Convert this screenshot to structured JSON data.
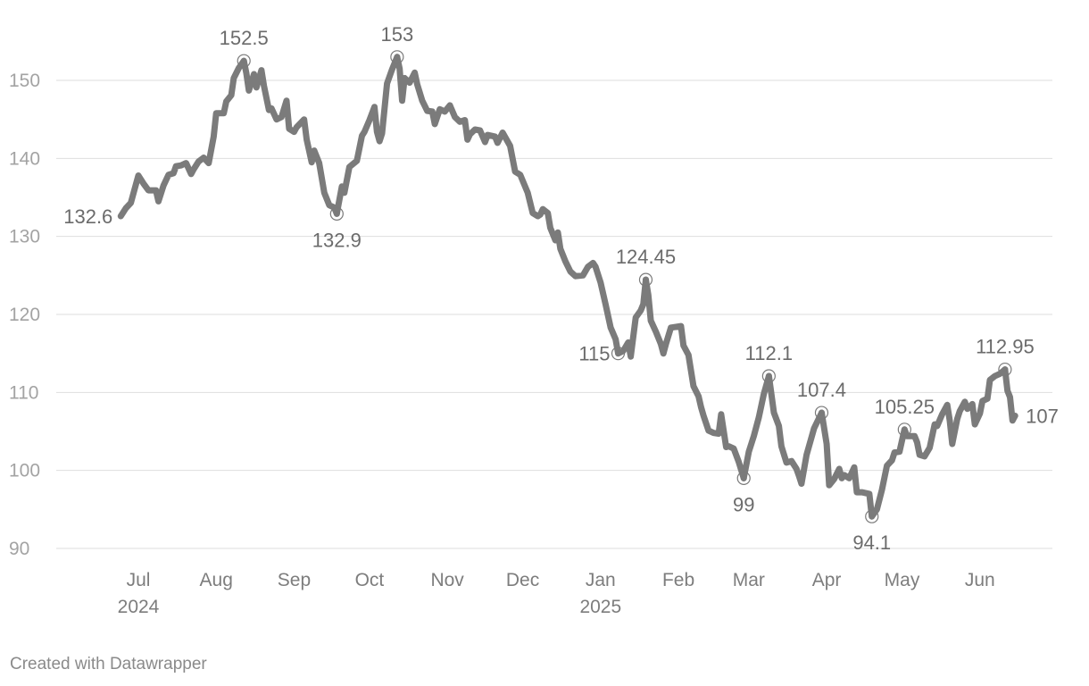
{
  "footer": {
    "credit": "Created with Datawrapper"
  },
  "chart_data": {
    "type": "line",
    "title": "",
    "xlabel": "",
    "ylabel": "",
    "ylim": [
      90,
      153
    ],
    "xlim": [
      "2024-06-23",
      "2025-06-30"
    ],
    "grid": true,
    "yticks": [
      90,
      100,
      110,
      120,
      130,
      140,
      150
    ],
    "xticks": [
      {
        "date": "2024-07-01",
        "label": "Jul",
        "year": "2024"
      },
      {
        "date": "2024-08-01",
        "label": "Aug",
        "year": ""
      },
      {
        "date": "2024-09-01",
        "label": "Sep",
        "year": ""
      },
      {
        "date": "2024-10-01",
        "label": "Oct",
        "year": ""
      },
      {
        "date": "2024-11-01",
        "label": "Nov",
        "year": ""
      },
      {
        "date": "2024-12-01",
        "label": "Dec",
        "year": ""
      },
      {
        "date": "2025-01-01",
        "label": "Jan",
        "year": "2025"
      },
      {
        "date": "2025-02-01",
        "label": "Feb",
        "year": ""
      },
      {
        "date": "2025-03-01",
        "label": "Mar",
        "year": ""
      },
      {
        "date": "2025-04-01",
        "label": "Apr",
        "year": ""
      },
      {
        "date": "2025-05-01",
        "label": "May",
        "year": ""
      },
      {
        "date": "2025-06-01",
        "label": "Jun",
        "year": ""
      }
    ],
    "series": [
      {
        "color": "#7b7b7b",
        "points": [
          [
            "2024-06-24",
            132.6
          ],
          [
            "2024-06-26",
            133.6
          ],
          [
            "2024-06-28",
            134.3
          ],
          [
            "2024-07-01",
            137.8
          ],
          [
            "2024-07-03",
            136.8
          ],
          [
            "2024-07-05",
            135.9
          ],
          [
            "2024-07-08",
            135.9
          ],
          [
            "2024-07-09",
            134.5
          ],
          [
            "2024-07-11",
            136.5
          ],
          [
            "2024-07-13",
            137.9
          ],
          [
            "2024-07-15",
            138.1
          ],
          [
            "2024-07-16",
            139.0
          ],
          [
            "2024-07-18",
            139.1
          ],
          [
            "2024-07-20",
            139.4
          ],
          [
            "2024-07-22",
            138.0
          ],
          [
            "2024-07-23",
            138.6
          ],
          [
            "2024-07-25",
            139.6
          ],
          [
            "2024-07-27",
            140.1
          ],
          [
            "2024-07-29",
            139.4
          ],
          [
            "2024-07-31",
            142.8
          ],
          [
            "2024-08-01",
            145.8
          ],
          [
            "2024-08-04",
            145.8
          ],
          [
            "2024-08-05",
            147.3
          ],
          [
            "2024-08-07",
            148.1
          ],
          [
            "2024-08-08",
            150.3
          ],
          [
            "2024-08-10",
            151.6
          ],
          [
            "2024-08-12",
            152.5
          ],
          [
            "2024-08-13",
            150.9
          ],
          [
            "2024-08-14",
            148.7
          ],
          [
            "2024-08-16",
            150.8
          ],
          [
            "2024-08-17",
            149.1
          ],
          [
            "2024-08-19",
            151.3
          ],
          [
            "2024-08-20",
            149.3
          ],
          [
            "2024-08-22",
            146.2
          ],
          [
            "2024-08-23",
            146.4
          ],
          [
            "2024-08-25",
            145.0
          ],
          [
            "2024-08-27",
            145.3
          ],
          [
            "2024-08-29",
            147.4
          ],
          [
            "2024-08-30",
            143.8
          ],
          [
            "2024-09-01",
            143.4
          ],
          [
            "2024-09-02",
            144.0
          ],
          [
            "2024-09-05",
            145.0
          ],
          [
            "2024-09-06",
            142.4
          ],
          [
            "2024-09-08",
            139.5
          ],
          [
            "2024-09-09",
            141.0
          ],
          [
            "2024-09-11",
            139.4
          ],
          [
            "2024-09-13",
            135.6
          ],
          [
            "2024-09-15",
            134.0
          ],
          [
            "2024-09-17",
            133.7
          ],
          [
            "2024-09-18",
            132.9
          ],
          [
            "2024-09-20",
            136.4
          ],
          [
            "2024-09-21",
            135.6
          ],
          [
            "2024-09-23",
            138.9
          ],
          [
            "2024-09-26",
            139.7
          ],
          [
            "2024-09-28",
            142.9
          ],
          [
            "2024-09-29",
            143.4
          ],
          [
            "2024-10-01",
            144.9
          ],
          [
            "2024-10-03",
            146.6
          ],
          [
            "2024-10-04",
            143.4
          ],
          [
            "2024-10-05",
            142.2
          ],
          [
            "2024-10-06",
            143.2
          ],
          [
            "2024-10-08",
            149.6
          ],
          [
            "2024-10-10",
            151.4
          ],
          [
            "2024-10-12",
            153.0
          ],
          [
            "2024-10-13",
            151.5
          ],
          [
            "2024-10-14",
            147.4
          ],
          [
            "2024-10-15",
            150.3
          ],
          [
            "2024-10-17",
            149.7
          ],
          [
            "2024-10-19",
            151.0
          ],
          [
            "2024-10-20",
            149.5
          ],
          [
            "2024-10-22",
            147.4
          ],
          [
            "2024-10-24",
            146.1
          ],
          [
            "2024-10-26",
            146.0
          ],
          [
            "2024-10-27",
            144.4
          ],
          [
            "2024-10-29",
            146.3
          ],
          [
            "2024-10-31",
            146.0
          ],
          [
            "2024-11-02",
            146.8
          ],
          [
            "2024-11-04",
            145.3
          ],
          [
            "2024-11-06",
            144.7
          ],
          [
            "2024-11-08",
            144.9
          ],
          [
            "2024-11-09",
            142.4
          ],
          [
            "2024-11-10",
            143.1
          ],
          [
            "2024-11-12",
            143.7
          ],
          [
            "2024-11-14",
            143.6
          ],
          [
            "2024-11-16",
            142.1
          ],
          [
            "2024-11-17",
            143.0
          ],
          [
            "2024-11-20",
            142.8
          ],
          [
            "2024-11-21",
            142.0
          ],
          [
            "2024-11-23",
            143.3
          ],
          [
            "2024-11-26",
            141.6
          ],
          [
            "2024-11-28",
            138.3
          ],
          [
            "2024-11-30",
            137.9
          ],
          [
            "2024-12-03",
            135.6
          ],
          [
            "2024-12-05",
            133.0
          ],
          [
            "2024-12-07",
            132.6
          ],
          [
            "2024-12-08",
            132.8
          ],
          [
            "2024-12-09",
            133.5
          ],
          [
            "2024-12-11",
            133.0
          ],
          [
            "2024-12-12",
            131.1
          ],
          [
            "2024-12-14",
            129.5
          ],
          [
            "2024-12-15",
            130.5
          ],
          [
            "2024-12-16",
            128.4
          ],
          [
            "2024-12-18",
            126.8
          ],
          [
            "2024-12-20",
            125.5
          ],
          [
            "2024-12-22",
            124.9
          ],
          [
            "2024-12-25",
            125.0
          ],
          [
            "2024-12-27",
            126.1
          ],
          [
            "2024-12-29",
            126.6
          ],
          [
            "2024-12-30",
            126.1
          ],
          [
            "2025-01-01",
            124.1
          ],
          [
            "2025-01-03",
            121.3
          ],
          [
            "2025-01-05",
            118.3
          ],
          [
            "2025-01-07",
            116.8
          ],
          [
            "2025-01-08",
            115.0
          ],
          [
            "2025-01-10",
            115.3
          ],
          [
            "2025-01-12",
            116.4
          ],
          [
            "2025-01-13",
            114.6
          ],
          [
            "2025-01-15",
            119.6
          ],
          [
            "2025-01-17",
            120.5
          ],
          [
            "2025-01-18",
            121.3
          ],
          [
            "2025-01-19",
            124.45
          ],
          [
            "2025-01-20",
            122.5
          ],
          [
            "2025-01-21",
            119.2
          ],
          [
            "2025-01-23",
            117.8
          ],
          [
            "2025-01-25",
            116.2
          ],
          [
            "2025-01-26",
            115.0
          ],
          [
            "2025-01-27",
            116.2
          ],
          [
            "2025-01-29",
            118.3
          ],
          [
            "2025-02-02",
            118.5
          ],
          [
            "2025-02-03",
            116.0
          ],
          [
            "2025-02-05",
            114.8
          ],
          [
            "2025-02-07",
            110.8
          ],
          [
            "2025-02-09",
            109.5
          ],
          [
            "2025-02-10",
            108.1
          ],
          [
            "2025-02-11",
            107.0
          ],
          [
            "2025-02-13",
            105.1
          ],
          [
            "2025-02-15",
            104.8
          ],
          [
            "2025-02-17",
            104.7
          ],
          [
            "2025-02-18",
            107.2
          ],
          [
            "2025-02-20",
            103.0
          ],
          [
            "2025-02-21",
            103.1
          ],
          [
            "2025-02-23",
            102.8
          ],
          [
            "2025-02-25",
            101.1
          ],
          [
            "2025-02-27",
            99.0
          ],
          [
            "2025-03-01",
            102.4
          ],
          [
            "2025-03-03",
            104.4
          ],
          [
            "2025-03-05",
            106.8
          ],
          [
            "2025-03-07",
            109.8
          ],
          [
            "2025-03-09",
            112.1
          ],
          [
            "2025-03-11",
            107.4
          ],
          [
            "2025-03-13",
            105.7
          ],
          [
            "2025-03-14",
            103.1
          ],
          [
            "2025-03-16",
            101.0
          ],
          [
            "2025-03-18",
            101.2
          ],
          [
            "2025-03-20",
            100.2
          ],
          [
            "2025-03-21",
            99.3
          ],
          [
            "2025-03-22",
            98.3
          ],
          [
            "2025-03-24",
            102.0
          ],
          [
            "2025-03-27",
            105.4
          ],
          [
            "2025-03-30",
            107.4
          ],
          [
            "2025-04-01",
            103.4
          ],
          [
            "2025-04-02",
            98.1
          ],
          [
            "2025-04-04",
            98.9
          ],
          [
            "2025-04-06",
            100.2
          ],
          [
            "2025-04-07",
            99.0
          ],
          [
            "2025-04-08",
            99.4
          ],
          [
            "2025-04-10",
            99.0
          ],
          [
            "2025-04-12",
            100.4
          ],
          [
            "2025-04-13",
            97.2
          ],
          [
            "2025-04-15",
            97.2
          ],
          [
            "2025-04-18",
            97.0
          ],
          [
            "2025-04-19",
            94.1
          ],
          [
            "2025-04-21",
            95.0
          ],
          [
            "2025-04-23",
            97.5
          ],
          [
            "2025-04-25",
            100.6
          ],
          [
            "2025-04-27",
            101.3
          ],
          [
            "2025-04-28",
            102.3
          ],
          [
            "2025-04-30",
            102.4
          ],
          [
            "2025-05-02",
            105.25
          ],
          [
            "2025-05-03",
            104.4
          ],
          [
            "2025-05-06",
            104.4
          ],
          [
            "2025-05-07",
            103.6
          ],
          [
            "2025-05-08",
            102.0
          ],
          [
            "2025-05-10",
            101.8
          ],
          [
            "2025-05-12",
            102.9
          ],
          [
            "2025-05-14",
            105.9
          ],
          [
            "2025-05-15",
            105.7
          ],
          [
            "2025-05-17",
            107.2
          ],
          [
            "2025-05-19",
            108.4
          ],
          [
            "2025-05-20",
            106.4
          ],
          [
            "2025-05-21",
            103.4
          ],
          [
            "2025-05-23",
            106.6
          ],
          [
            "2025-05-24",
            107.6
          ],
          [
            "2025-05-26",
            108.8
          ],
          [
            "2025-05-27",
            107.9
          ],
          [
            "2025-05-29",
            108.5
          ],
          [
            "2025-05-30",
            105.9
          ],
          [
            "2025-06-01",
            107.3
          ],
          [
            "2025-06-02",
            108.9
          ],
          [
            "2025-06-04",
            109.2
          ],
          [
            "2025-06-05",
            111.6
          ],
          [
            "2025-06-07",
            112.1
          ],
          [
            "2025-06-09",
            112.4
          ],
          [
            "2025-06-11",
            112.95
          ],
          [
            "2025-06-12",
            110.2
          ],
          [
            "2025-06-13",
            109.4
          ],
          [
            "2025-06-14",
            106.4
          ],
          [
            "2025-06-15",
            107.0
          ]
        ]
      }
    ],
    "annotations": [
      {
        "date": "2024-06-24",
        "value": 132.6,
        "label": "132.6",
        "pos": "left",
        "marker": false
      },
      {
        "date": "2024-08-12",
        "value": 152.5,
        "label": "152.5",
        "pos": "above",
        "marker": true
      },
      {
        "date": "2024-09-18",
        "value": 132.9,
        "label": "132.9",
        "pos": "below",
        "marker": true
      },
      {
        "date": "2024-10-12",
        "value": 153.0,
        "label": "153",
        "pos": "above",
        "marker": true
      },
      {
        "date": "2025-01-08",
        "value": 115.0,
        "label": "115",
        "pos": "left",
        "marker": true
      },
      {
        "date": "2025-01-19",
        "value": 124.45,
        "label": "124.45",
        "pos": "above",
        "marker": true
      },
      {
        "date": "2025-02-27",
        "value": 99.0,
        "label": "99",
        "pos": "below",
        "marker": true
      },
      {
        "date": "2025-03-09",
        "value": 112.1,
        "label": "112.1",
        "pos": "above",
        "marker": true
      },
      {
        "date": "2025-03-30",
        "value": 107.4,
        "label": "107.4",
        "pos": "above",
        "marker": true
      },
      {
        "date": "2025-04-19",
        "value": 94.1,
        "label": "94.1",
        "pos": "below",
        "marker": true
      },
      {
        "date": "2025-05-02",
        "value": 105.25,
        "label": "105.25",
        "pos": "above",
        "marker": true
      },
      {
        "date": "2025-06-11",
        "value": 112.95,
        "label": "112.95",
        "pos": "above",
        "marker": true
      },
      {
        "date": "2025-06-15",
        "value": 107.0,
        "label": "107",
        "pos": "right",
        "marker": false
      }
    ]
  }
}
